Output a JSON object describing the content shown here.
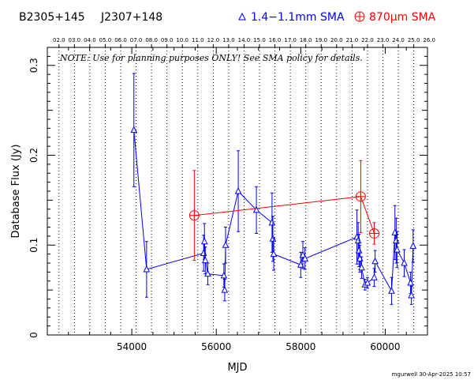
{
  "header": {
    "source_name": "B2305+145",
    "alt_name": "J2307+148",
    "legend_blue": "1.4−1.1mm SMA",
    "legend_red": "870μm SMA",
    "blue_color": "#0000ff",
    "red_color": "#ff0000"
  },
  "note_text": "NOTE: Use for planning purposes ONLY! See SMA policy for details.",
  "footer_stamp": "mgurwell 30-Apr-2025 10:57",
  "chart_data": {
    "type": "scatter",
    "xlabel": "MJD",
    "ylabel": "Database Flux (Jy)",
    "xlim": [
      52000,
      61000
    ],
    "ylim": [
      0,
      0.32
    ],
    "x_ticks": [
      54000,
      56000,
      58000,
      60000
    ],
    "x_tick_labels": [
      "54000",
      "56000",
      "58000",
      "60000"
    ],
    "y_ticks": [
      0,
      0.1,
      0.2,
      0.3
    ],
    "y_tick_labels": [
      "0",
      "0.1",
      "0.2",
      "0.3"
    ],
    "top_axis_labels": [
      "02.0",
      "03.0",
      "04.0",
      "05.0",
      "06.0",
      "07.0",
      "08.0",
      "09.0",
      "10.0",
      "11.0",
      "12.0",
      "13.0",
      "14.0",
      "15.0",
      "16.0",
      "17.0",
      "18.0",
      "19.0",
      "20.0",
      "21.0",
      "22.0",
      "23.0",
      "24.0",
      "25.0",
      "26.0"
    ],
    "year_mjd": [
      52276,
      52641,
      53006,
      53371,
      53737,
      54102,
      54467,
      54832,
      55197,
      55563,
      55928,
      56293,
      56658,
      57023,
      57388,
      57754,
      58119,
      58484,
      58849,
      59215,
      59580,
      59945,
      60310,
      60676,
      61041
    ],
    "grid": "vertical dotted at year boundaries",
    "legend": "top",
    "series": [
      {
        "name": "1.4−1.1mm SMA",
        "color": "#0000ff",
        "marker": "triangle",
        "points": [
          {
            "x": 54050,
            "y": 0.228,
            "err": 0.063
          },
          {
            "x": 54350,
            "y": 0.073,
            "err": 0.031
          },
          {
            "x": 55700,
            "y": 0.091,
            "err": 0.02
          },
          {
            "x": 55720,
            "y": 0.104,
            "err": 0.02
          },
          {
            "x": 55740,
            "y": 0.083,
            "err": 0.015
          },
          {
            "x": 55800,
            "y": 0.068,
            "err": 0.012
          },
          {
            "x": 56180,
            "y": 0.066,
            "err": 0.013
          },
          {
            "x": 56200,
            "y": 0.05,
            "err": 0.012
          },
          {
            "x": 56220,
            "y": 0.1,
            "err": 0.02
          },
          {
            "x": 56520,
            "y": 0.16,
            "err": 0.045
          },
          {
            "x": 56950,
            "y": 0.139,
            "err": 0.026
          },
          {
            "x": 57320,
            "y": 0.125,
            "err": 0.033
          },
          {
            "x": 57340,
            "y": 0.107,
            "err": 0.025
          },
          {
            "x": 57360,
            "y": 0.09,
            "err": 0.018
          },
          {
            "x": 58000,
            "y": 0.078,
            "err": 0.014
          },
          {
            "x": 58050,
            "y": 0.089,
            "err": 0.015
          },
          {
            "x": 58100,
            "y": 0.085,
            "err": 0.012
          },
          {
            "x": 59330,
            "y": 0.109,
            "err": 0.03
          },
          {
            "x": 59360,
            "y": 0.105,
            "err": 0.02
          },
          {
            "x": 59380,
            "y": 0.094,
            "err": 0.018
          },
          {
            "x": 59400,
            "y": 0.085,
            "err": 0.015
          },
          {
            "x": 59440,
            "y": 0.075,
            "err": 0.012
          },
          {
            "x": 59520,
            "y": 0.056,
            "err": 0.006
          },
          {
            "x": 59580,
            "y": 0.058,
            "err": 0.006
          },
          {
            "x": 59740,
            "y": 0.064,
            "err": 0.01
          },
          {
            "x": 59760,
            "y": 0.082,
            "err": 0.012
          },
          {
            "x": 60150,
            "y": 0.049,
            "err": 0.015
          },
          {
            "x": 60230,
            "y": 0.114,
            "err": 0.03
          },
          {
            "x": 60260,
            "y": 0.105,
            "err": 0.025
          },
          {
            "x": 60280,
            "y": 0.095,
            "err": 0.02
          },
          {
            "x": 60450,
            "y": 0.08,
            "err": 0.015
          },
          {
            "x": 60600,
            "y": 0.058,
            "err": 0.012
          },
          {
            "x": 60620,
            "y": 0.044,
            "err": 0.01
          },
          {
            "x": 60660,
            "y": 0.099,
            "err": 0.018
          }
        ]
      },
      {
        "name": "870μm SMA",
        "color": "#ff0000",
        "marker": "circle-plus",
        "points": [
          {
            "x": 55480,
            "y": 0.133,
            "err": 0.05
          },
          {
            "x": 59420,
            "y": 0.154,
            "err": 0.04
          },
          {
            "x": 59740,
            "y": 0.113,
            "err": 0.012
          }
        ]
      }
    ]
  }
}
